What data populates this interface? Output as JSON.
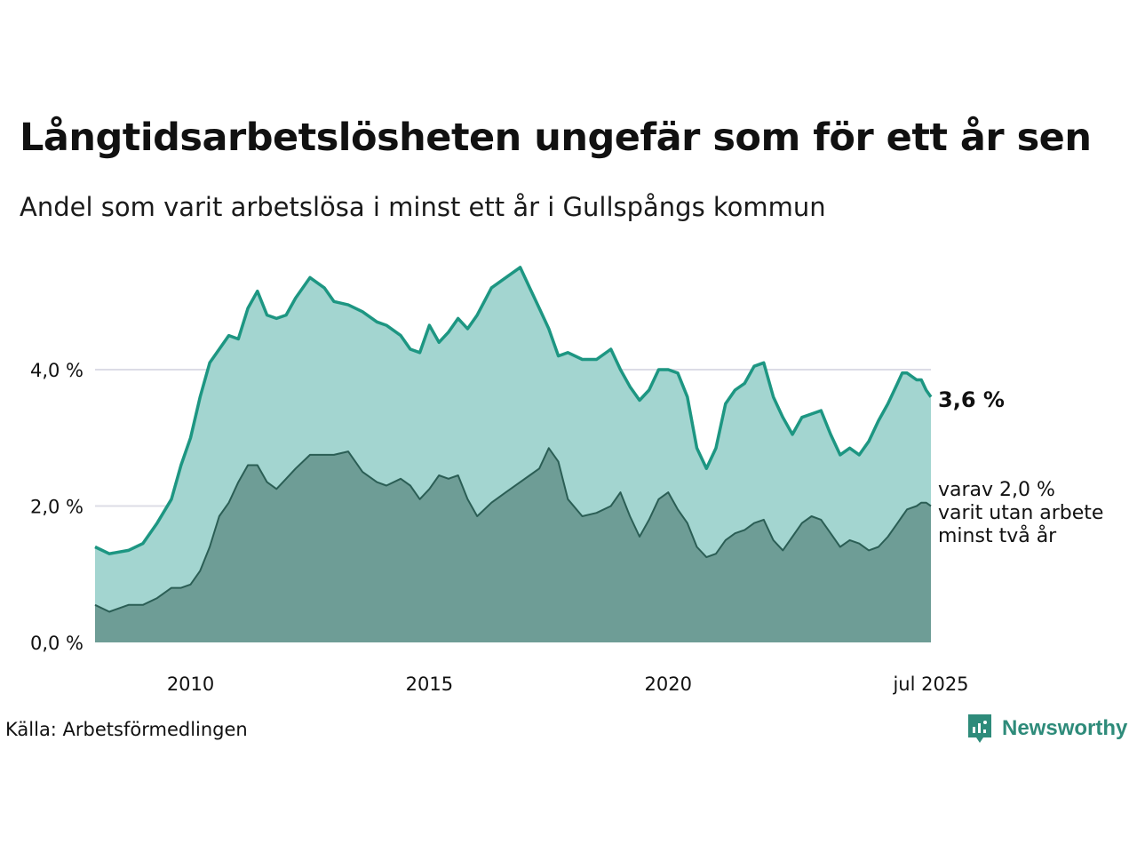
{
  "title": "Långtidsarbetslösheten ungefär som för ett år sen",
  "subtitle": "Andel som varit arbetslösa i minst ett år i Gullspångs kommun",
  "source": "Källa: Arbetsförmedlingen",
  "brand": "Newsworthy",
  "brand_icon": "newsworthy-logo-icon",
  "colors": {
    "long_term_line": "#1d9682",
    "long_term_fill": "#a3d5d0",
    "two_year_line": "#2b5e55",
    "two_year_fill": "#6e9d96",
    "grid": "#dcdce6",
    "brand": "#2e8b7a"
  },
  "chart_data": {
    "type": "area",
    "x_start": "2008-01",
    "x_end": "2025-07",
    "x_ticks": [
      {
        "x": 2010.0,
        "label": "2010"
      },
      {
        "x": 2015.0,
        "label": "2015"
      },
      {
        "x": 2020.0,
        "label": "2020"
      },
      {
        "x": 2025.5,
        "label": "jul 2025"
      }
    ],
    "y_ticks": [
      {
        "y": 0,
        "label": "0,0 %"
      },
      {
        "y": 2,
        "label": "2,0 %"
      },
      {
        "y": 4,
        "label": "4,0 %"
      }
    ],
    "ylim": [
      0,
      5.6
    ],
    "grid": true,
    "series": [
      {
        "key": "long_term",
        "end_label": "3,6 %",
        "points": [
          [
            2008.0,
            1.4
          ],
          [
            2008.3,
            1.3
          ],
          [
            2008.7,
            1.35
          ],
          [
            2009.0,
            1.45
          ],
          [
            2009.3,
            1.75
          ],
          [
            2009.6,
            2.1
          ],
          [
            2009.8,
            2.6
          ],
          [
            2010.0,
            3.0
          ],
          [
            2010.2,
            3.6
          ],
          [
            2010.4,
            4.1
          ],
          [
            2010.6,
            4.3
          ],
          [
            2010.8,
            4.5
          ],
          [
            2011.0,
            4.45
          ],
          [
            2011.2,
            4.9
          ],
          [
            2011.4,
            5.15
          ],
          [
            2011.6,
            4.8
          ],
          [
            2011.8,
            4.75
          ],
          [
            2012.0,
            4.8
          ],
          [
            2012.2,
            5.05
          ],
          [
            2012.5,
            5.35
          ],
          [
            2012.8,
            5.2
          ],
          [
            2013.0,
            5.0
          ],
          [
            2013.3,
            4.95
          ],
          [
            2013.6,
            4.85
          ],
          [
            2013.9,
            4.7
          ],
          [
            2014.1,
            4.65
          ],
          [
            2014.4,
            4.5
          ],
          [
            2014.6,
            4.3
          ],
          [
            2014.8,
            4.25
          ],
          [
            2015.0,
            4.65
          ],
          [
            2015.2,
            4.4
          ],
          [
            2015.4,
            4.55
          ],
          [
            2015.6,
            4.75
          ],
          [
            2015.8,
            4.6
          ],
          [
            2016.0,
            4.8
          ],
          [
            2016.3,
            5.2
          ],
          [
            2016.6,
            5.35
          ],
          [
            2016.9,
            5.5
          ],
          [
            2017.1,
            5.2
          ],
          [
            2017.3,
            4.9
          ],
          [
            2017.5,
            4.6
          ],
          [
            2017.7,
            4.2
          ],
          [
            2017.9,
            4.25
          ],
          [
            2018.2,
            4.15
          ],
          [
            2018.5,
            4.15
          ],
          [
            2018.8,
            4.3
          ],
          [
            2019.0,
            4.0
          ],
          [
            2019.2,
            3.75
          ],
          [
            2019.4,
            3.55
          ],
          [
            2019.6,
            3.7
          ],
          [
            2019.8,
            4.0
          ],
          [
            2020.0,
            4.0
          ],
          [
            2020.2,
            3.95
          ],
          [
            2020.4,
            3.6
          ],
          [
            2020.6,
            2.85
          ],
          [
            2020.8,
            2.55
          ],
          [
            2021.0,
            2.85
          ],
          [
            2021.2,
            3.5
          ],
          [
            2021.4,
            3.7
          ],
          [
            2021.6,
            3.8
          ],
          [
            2021.8,
            4.05
          ],
          [
            2022.0,
            4.1
          ],
          [
            2022.2,
            3.6
          ],
          [
            2022.4,
            3.3
          ],
          [
            2022.6,
            3.05
          ],
          [
            2022.8,
            3.3
          ],
          [
            2023.0,
            3.35
          ],
          [
            2023.2,
            3.4
          ],
          [
            2023.4,
            3.05
          ],
          [
            2023.6,
            2.75
          ],
          [
            2023.8,
            2.85
          ],
          [
            2024.0,
            2.75
          ],
          [
            2024.2,
            2.95
          ],
          [
            2024.4,
            3.25
          ],
          [
            2024.6,
            3.5
          ],
          [
            2024.8,
            3.8
          ],
          [
            2024.9,
            3.95
          ],
          [
            2025.0,
            3.95
          ],
          [
            2025.2,
            3.85
          ],
          [
            2025.3,
            3.85
          ],
          [
            2025.4,
            3.7
          ],
          [
            2025.5,
            3.6
          ]
        ]
      },
      {
        "key": "two_year",
        "end_label": "varav 2,0 %\nvarit utan arbete\nminst två år",
        "points": [
          [
            2008.0,
            0.55
          ],
          [
            2008.3,
            0.45
          ],
          [
            2008.7,
            0.55
          ],
          [
            2009.0,
            0.55
          ],
          [
            2009.3,
            0.65
          ],
          [
            2009.6,
            0.8
          ],
          [
            2009.8,
            0.8
          ],
          [
            2010.0,
            0.85
          ],
          [
            2010.2,
            1.05
          ],
          [
            2010.4,
            1.4
          ],
          [
            2010.6,
            1.85
          ],
          [
            2010.8,
            2.05
          ],
          [
            2011.0,
            2.35
          ],
          [
            2011.2,
            2.6
          ],
          [
            2011.4,
            2.6
          ],
          [
            2011.6,
            2.35
          ],
          [
            2011.8,
            2.25
          ],
          [
            2012.0,
            2.4
          ],
          [
            2012.2,
            2.55
          ],
          [
            2012.5,
            2.75
          ],
          [
            2012.8,
            2.75
          ],
          [
            2013.0,
            2.75
          ],
          [
            2013.3,
            2.8
          ],
          [
            2013.6,
            2.5
          ],
          [
            2013.9,
            2.35
          ],
          [
            2014.1,
            2.3
          ],
          [
            2014.4,
            2.4
          ],
          [
            2014.6,
            2.3
          ],
          [
            2014.8,
            2.1
          ],
          [
            2015.0,
            2.25
          ],
          [
            2015.2,
            2.45
          ],
          [
            2015.4,
            2.4
          ],
          [
            2015.6,
            2.45
          ],
          [
            2015.8,
            2.1
          ],
          [
            2016.0,
            1.85
          ],
          [
            2016.3,
            2.05
          ],
          [
            2016.6,
            2.2
          ],
          [
            2016.9,
            2.35
          ],
          [
            2017.1,
            2.45
          ],
          [
            2017.3,
            2.55
          ],
          [
            2017.5,
            2.85
          ],
          [
            2017.7,
            2.65
          ],
          [
            2017.9,
            2.1
          ],
          [
            2018.2,
            1.85
          ],
          [
            2018.5,
            1.9
          ],
          [
            2018.8,
            2.0
          ],
          [
            2019.0,
            2.2
          ],
          [
            2019.2,
            1.85
          ],
          [
            2019.4,
            1.55
          ],
          [
            2019.6,
            1.8
          ],
          [
            2019.8,
            2.1
          ],
          [
            2020.0,
            2.2
          ],
          [
            2020.2,
            1.95
          ],
          [
            2020.4,
            1.75
          ],
          [
            2020.6,
            1.4
          ],
          [
            2020.8,
            1.25
          ],
          [
            2021.0,
            1.3
          ],
          [
            2021.2,
            1.5
          ],
          [
            2021.4,
            1.6
          ],
          [
            2021.6,
            1.65
          ],
          [
            2021.8,
            1.75
          ],
          [
            2022.0,
            1.8
          ],
          [
            2022.2,
            1.5
          ],
          [
            2022.4,
            1.35
          ],
          [
            2022.6,
            1.55
          ],
          [
            2022.8,
            1.75
          ],
          [
            2023.0,
            1.85
          ],
          [
            2023.2,
            1.8
          ],
          [
            2023.4,
            1.6
          ],
          [
            2023.6,
            1.4
          ],
          [
            2023.8,
            1.5
          ],
          [
            2024.0,
            1.45
          ],
          [
            2024.2,
            1.35
          ],
          [
            2024.4,
            1.4
          ],
          [
            2024.6,
            1.55
          ],
          [
            2024.8,
            1.75
          ],
          [
            2024.9,
            1.85
          ],
          [
            2025.0,
            1.95
          ],
          [
            2025.2,
            2.0
          ],
          [
            2025.3,
            2.05
          ],
          [
            2025.4,
            2.05
          ],
          [
            2025.5,
            2.0
          ]
        ]
      }
    ]
  }
}
